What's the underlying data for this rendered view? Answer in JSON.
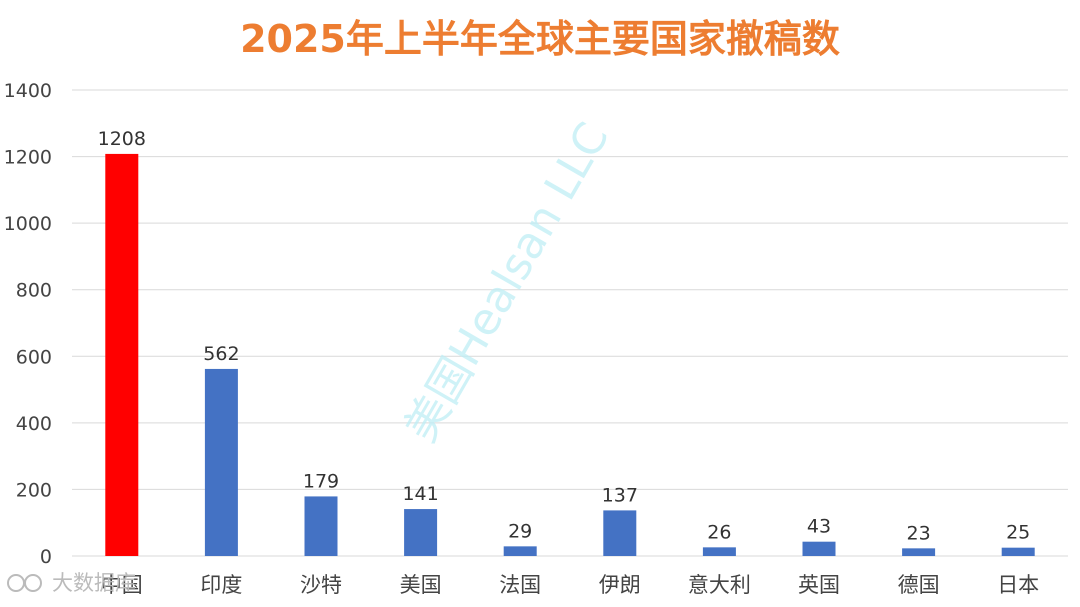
{
  "title": "2025年上半年全球主要国家撤稿数",
  "watermark": "美国Healsan LLC",
  "source_logo": "大数据库",
  "colors": {
    "title": "#ED7D31",
    "highlight": "#FF0000",
    "bar": "#4472C4",
    "grid": "#D9D9D9"
  },
  "chart_data": {
    "type": "bar",
    "title": "2025年上半年全球主要国家撤稿数",
    "categories": [
      "中国",
      "印度",
      "沙特",
      "美国",
      "法国",
      "伊朗",
      "意大利",
      "英国",
      "德国",
      "日本"
    ],
    "values": [
      1208,
      562,
      179,
      141,
      29,
      137,
      26,
      43,
      23,
      25
    ],
    "highlight_category": "中国",
    "ylim": [
      0,
      1400
    ],
    "yticks": [
      0,
      200,
      400,
      600,
      800,
      1000,
      1200,
      1400
    ],
    "grid": true,
    "data_labels": true
  }
}
